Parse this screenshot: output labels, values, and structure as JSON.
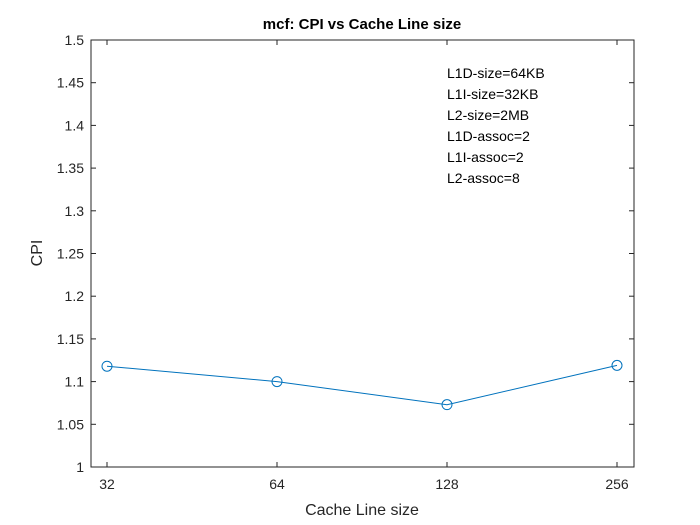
{
  "chart_data": {
    "type": "line",
    "title": "mcf: CPI vs Cache Line size",
    "xlabel": "Cache Line size",
    "ylabel": "CPI",
    "x_scale": "log2",
    "x": [
      32,
      64,
      128,
      256
    ],
    "x_tick_labels": [
      "32",
      "64",
      "128",
      "256"
    ],
    "ylim": [
      1,
      1.5
    ],
    "y_ticks": [
      1,
      1.05,
      1.1,
      1.15,
      1.2,
      1.25,
      1.3,
      1.35,
      1.4,
      1.45,
      1.5
    ],
    "y_tick_labels": [
      "1",
      "1.05",
      "1.1",
      "1.15",
      "1.2",
      "1.25",
      "1.3",
      "1.35",
      "1.4",
      "1.45",
      "1.5"
    ],
    "grid": false,
    "series": [
      {
        "values": [
          1.118,
          1.1,
          1.073,
          1.119
        ],
        "color": "#0072BD",
        "marker": "circle"
      }
    ],
    "annotation": [
      "L1D-size=64KB",
      "L1I-size=32KB",
      "L2-size=2MB",
      "L1D-assoc=2",
      "L1I-assoc=2",
      "L2-assoc=8"
    ]
  }
}
